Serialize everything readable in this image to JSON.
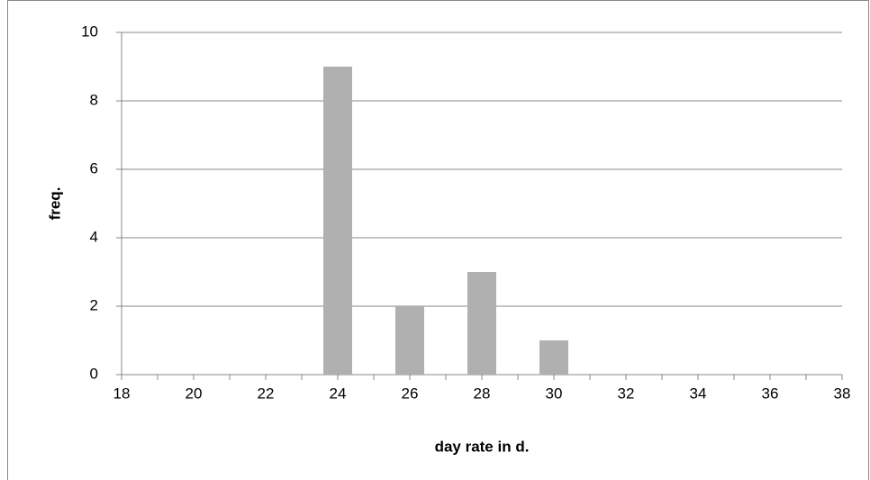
{
  "chart_data": {
    "type": "bar",
    "x": [
      24,
      26,
      28,
      30
    ],
    "values": [
      9,
      2,
      3,
      1
    ],
    "color": "#b0b0b0",
    "xlim": [
      18,
      38
    ],
    "xticks": [
      18,
      20,
      22,
      24,
      26,
      28,
      30,
      32,
      34,
      36,
      38
    ],
    "ylim": [
      0,
      10
    ],
    "yticks": [
      0,
      2,
      4,
      6,
      8,
      10
    ],
    "xlabel": "day rate in d.",
    "ylabel": "freq.",
    "grid": true
  }
}
